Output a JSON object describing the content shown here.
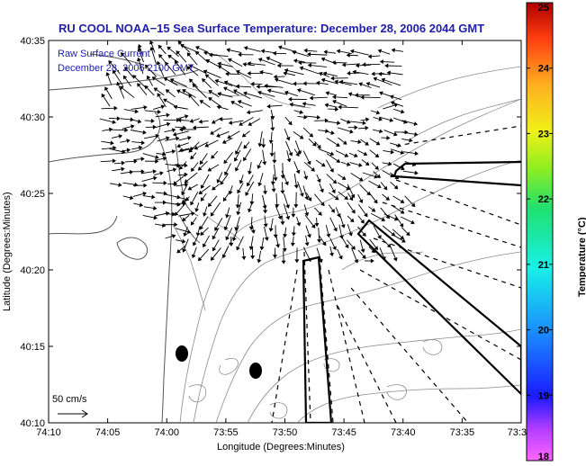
{
  "title": "RU COOL  NOAA−15  Sea Surface Temperature:  December 28, 2006 2044 GMT",
  "legend": {
    "line1": "Raw Surface Current",
    "line2": "December 28, 2006 2100 GMT"
  },
  "scale_label": "50 cm/s",
  "axes": {
    "xlabel": "Longitude (Degrees:Minutes)",
    "ylabel": "Latitude (Degrees:Minutes)",
    "xticks": [
      "74:10",
      "74:05",
      "74:00",
      "73:55",
      "73:50",
      "73:45",
      "73:40",
      "73:35",
      "73:3"
    ],
    "yticks": [
      "40:35",
      "40:30",
      "40:25",
      "40:20",
      "40:15",
      "40:10"
    ]
  },
  "colorbar": {
    "label": "Temperature (°C)",
    "ticks": [
      "25",
      "24",
      "23",
      "22",
      "21",
      "20",
      "19",
      "18"
    ],
    "range": [
      18,
      25
    ]
  },
  "colors": {
    "title": "#1f1fa8",
    "land": "#000000",
    "contour": "#888888",
    "vectors": "#000000"
  }
}
